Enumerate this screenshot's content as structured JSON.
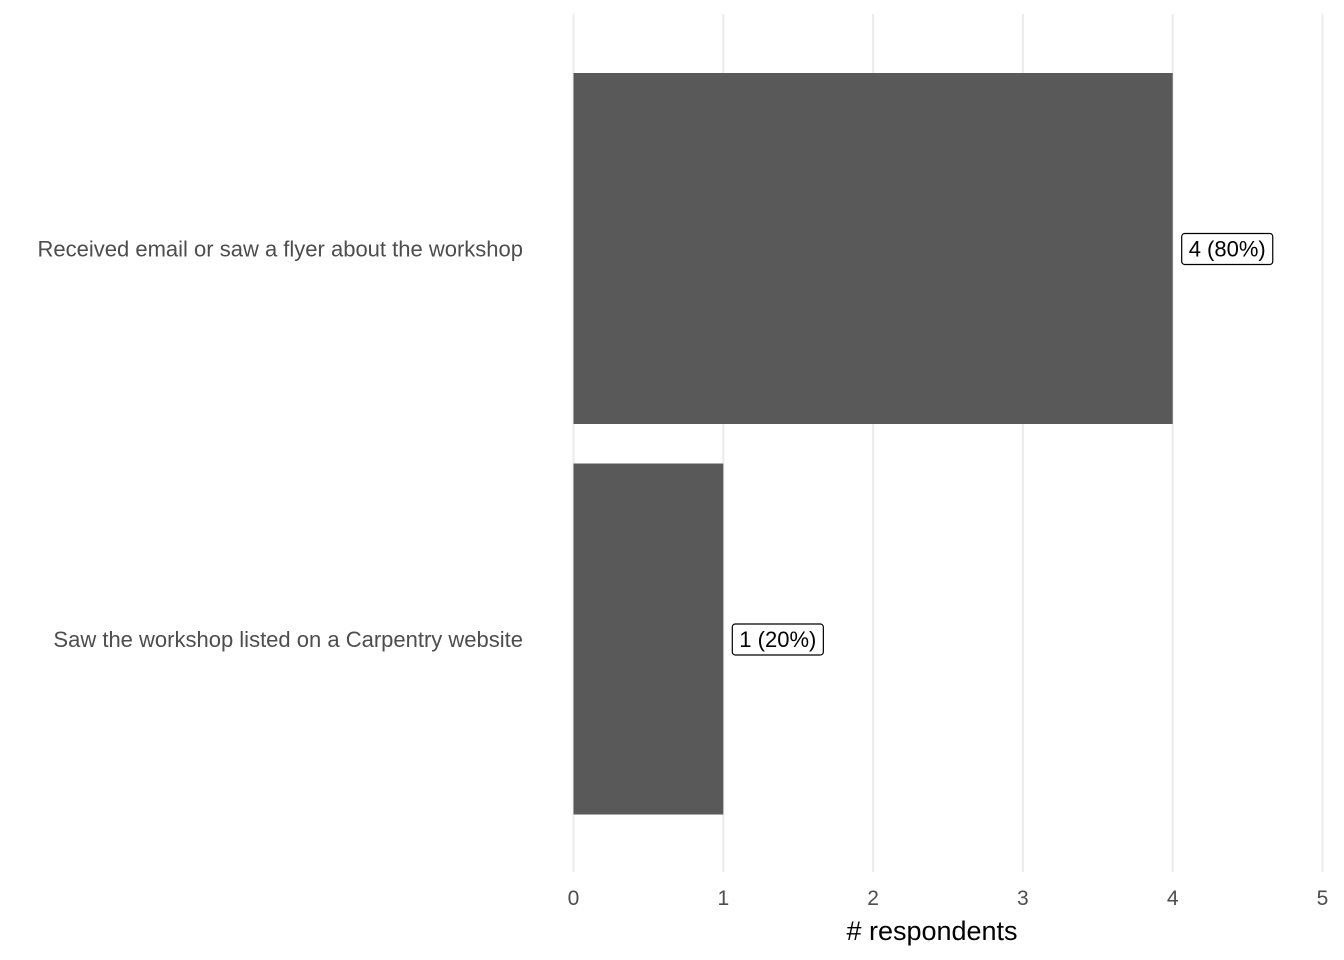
{
  "chart_data": {
    "type": "bar",
    "orientation": "horizontal",
    "categories": [
      "Received email or saw a flyer about the workshop",
      "Saw the workshop listed on a Carpentry website"
    ],
    "values": [
      4,
      1
    ],
    "data_labels": [
      "4 (80%)",
      "1 (20%)"
    ],
    "xlabel": "# respondents",
    "xlim": [
      0,
      5
    ],
    "x_ticks": [
      "0",
      "1",
      "2",
      "3",
      "4",
      "5"
    ],
    "grid": "vertical major",
    "legend": "none",
    "bar_color": "#595959"
  }
}
